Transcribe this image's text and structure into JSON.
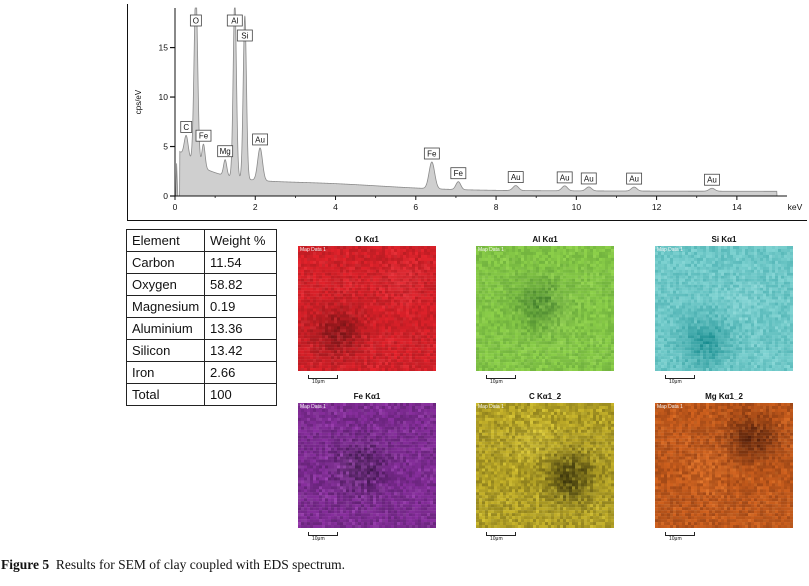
{
  "chart_data": {
    "type": "area",
    "ylabel": "cps/eV",
    "xunit": "keV",
    "xlim": [
      0,
      15
    ],
    "ylim": [
      0,
      19
    ],
    "xticks": [
      0,
      2,
      4,
      6,
      8,
      10,
      12,
      14
    ],
    "yticks": [
      0,
      5,
      10,
      15
    ],
    "peaks": [
      {
        "label": "C",
        "energy": 0.28,
        "height": 2.2,
        "width": 0.05
      },
      {
        "label": "O",
        "energy": 0.52,
        "height": 17.5,
        "width": 0.045
      },
      {
        "label": "Fe",
        "energy": 0.71,
        "height": 2.4,
        "width": 0.04
      },
      {
        "label": "Mg",
        "energy": 1.25,
        "height": 1.6,
        "width": 0.04
      },
      {
        "label": "Al",
        "energy": 1.49,
        "height": 18.0,
        "width": 0.04
      },
      {
        "label": "Si",
        "energy": 1.74,
        "height": 16.5,
        "width": 0.04
      },
      {
        "label": "Au",
        "energy": 2.12,
        "height": 3.3,
        "width": 0.06
      },
      {
        "label": "Fe",
        "energy": 6.4,
        "height": 2.7,
        "width": 0.07
      },
      {
        "label": "Fe",
        "energy": 7.06,
        "height": 0.8,
        "width": 0.06
      },
      {
        "label": "Au",
        "energy": 8.49,
        "height": 0.5,
        "width": 0.07
      },
      {
        "label": "Au",
        "energy": 9.71,
        "height": 0.5,
        "width": 0.07
      },
      {
        "label": "Au",
        "energy": 10.31,
        "height": 0.4,
        "width": 0.07
      },
      {
        "label": "Au",
        "energy": 11.44,
        "height": 0.4,
        "width": 0.07
      },
      {
        "label": "Au",
        "energy": 13.38,
        "height": 0.3,
        "width": 0.07
      }
    ],
    "peak_label_order": [
      0,
      1,
      2,
      3,
      4,
      5,
      6,
      7,
      8,
      9,
      10,
      11,
      12,
      13
    ]
  },
  "table": {
    "headers": [
      "Element",
      "Weight %"
    ],
    "rows": [
      [
        "Carbon",
        "11.54"
      ],
      [
        "Oxygen",
        "58.82"
      ],
      [
        "Magnesium",
        "0.19"
      ],
      [
        "Aluminium",
        "13.36"
      ],
      [
        "Silicon",
        "13.42"
      ],
      [
        "Iron",
        "2.66"
      ],
      [
        "Total",
        "100"
      ]
    ]
  },
  "maps": [
    {
      "title": "O Kα1",
      "label": "Map Data 1",
      "scale": "10μm",
      "base": "#e4222b",
      "dark": "#6e1214",
      "light": "#f0454d"
    },
    {
      "title": "Al Kα1",
      "label": "Map Data 1",
      "scale": "10μm",
      "base": "#8ed24a",
      "dark": "#3e7a2a",
      "light": "#a8e066"
    },
    {
      "title": "Si Kα1",
      "label": "Map Data 1",
      "scale": "10μm",
      "base": "#7fd3d2",
      "dark": "#12898c",
      "light": "#a2e2e2"
    },
    {
      "title": "Fe Kα1",
      "label": "Map Data 1",
      "scale": "10μm",
      "base": "#8a2fa0",
      "dark": "#2a0e36",
      "light": "#c266d6"
    },
    {
      "title": "C Kα1_2",
      "label": "Map Data 1",
      "scale": "10μm",
      "base": "#c9b52a",
      "dark": "#2a2608",
      "light": "#f0e04a"
    },
    {
      "title": "Mg Kα1_2",
      "label": "Map Data 1",
      "scale": "10μm",
      "base": "#d2621e",
      "dark": "#4a1a08",
      "light": "#f28a3a"
    }
  ],
  "caption": {
    "figure": "Figure 5",
    "text": "Results for SEM of clay coupled with EDS spectrum."
  }
}
